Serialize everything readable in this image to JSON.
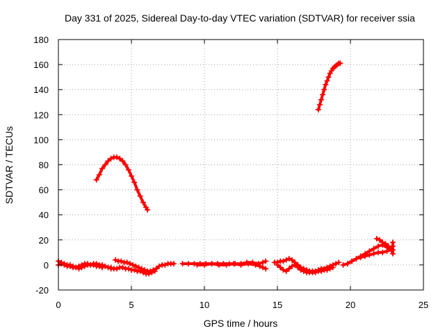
{
  "chart_data": {
    "type": "scatter",
    "title": "Day 331 of 2025, Sidereal Day-to-day VTEC variation (SDTVAR) for receiver ssia",
    "xlabel": "GPS time / hours",
    "ylabel": "SDTVAR / TECUs",
    "xlim": [
      0,
      25
    ],
    "ylim": [
      -20,
      180
    ],
    "xticks": [
      0,
      5,
      10,
      15,
      20,
      25
    ],
    "yticks": [
      -20,
      0,
      20,
      40,
      60,
      80,
      100,
      120,
      140,
      160,
      180
    ],
    "grid": true,
    "marker": "plus",
    "color": "#ff0000",
    "series": [
      {
        "name": "arc-1",
        "x": [
          2.6,
          2.8,
          3.0,
          3.2,
          3.4,
          3.6,
          3.8,
          4.0,
          4.2,
          4.4,
          4.6,
          4.8,
          5.0,
          5.2,
          5.4,
          5.6,
          5.8,
          6.0,
          6.1
        ],
        "y": [
          68,
          72,
          77,
          80,
          83,
          85,
          86,
          86,
          85,
          83,
          80,
          76,
          71,
          66,
          60,
          55,
          50,
          46,
          44
        ]
      },
      {
        "name": "arc-2",
        "x": [
          17.8,
          17.9,
          18.0,
          18.1,
          18.2,
          18.3,
          18.4,
          18.5,
          18.6,
          18.7,
          18.8,
          18.9,
          19.0,
          19.1,
          19.2,
          19.3
        ],
        "y": [
          124,
          128,
          132,
          136,
          140,
          144,
          147,
          150,
          153,
          155,
          157,
          158,
          159,
          160,
          161,
          161
        ]
      },
      {
        "name": "arc-3",
        "x": [
          0.0,
          0.2,
          0.4,
          0.6,
          0.8,
          1.0,
          1.2,
          1.4,
          1.6,
          1.8,
          2.0,
          2.2,
          2.4,
          2.6,
          2.8,
          3.0,
          3.2,
          3.4,
          3.6
        ],
        "y": [
          3,
          2,
          1,
          0,
          0,
          -1,
          -2,
          -3,
          -2,
          -1,
          0,
          0,
          1,
          1,
          0,
          0,
          -1,
          -2,
          -2
        ]
      },
      {
        "name": "arc-4",
        "x": [
          0.0,
          0.2,
          0.4,
          0.6,
          0.8,
          1.0,
          1.2,
          1.4,
          1.6,
          1.8,
          2.0,
          2.2,
          2.4,
          2.6,
          2.8,
          3.0
        ],
        "y": [
          0,
          1,
          0,
          -1,
          -1,
          -2,
          -2,
          -1,
          0,
          1,
          1,
          0,
          0,
          -1,
          -1,
          -2
        ]
      },
      {
        "name": "arc-5",
        "x": [
          3.9,
          4.1,
          4.3,
          4.5,
          4.7,
          4.9,
          5.1,
          5.3,
          5.5,
          5.7,
          5.9,
          6.1,
          6.3,
          6.5,
          6.7,
          6.9,
          7.1,
          7.3,
          7.5,
          7.7,
          7.9
        ],
        "y": [
          4,
          3,
          3,
          2,
          2,
          1,
          0,
          -1,
          -2,
          -3,
          -4,
          -5,
          -5,
          -4,
          -3,
          -1,
          0,
          0,
          1,
          1,
          1
        ]
      },
      {
        "name": "arc-6",
        "x": [
          3.6,
          3.8,
          4.0,
          4.2,
          4.4,
          4.6,
          4.8,
          5.0,
          5.2,
          5.4,
          5.6,
          5.8,
          6.0,
          6.2,
          6.4,
          6.6
        ],
        "y": [
          -3,
          -3,
          -3,
          -2,
          -2,
          -3,
          -3,
          -4,
          -4,
          -5,
          -5,
          -6,
          -7,
          -7,
          -6,
          -5
        ]
      },
      {
        "name": "arc-7",
        "x": [
          8.5,
          8.9,
          9.3,
          9.7,
          10.1,
          10.5,
          10.9,
          11.3,
          11.7,
          12.1,
          12.5,
          12.9,
          13.3,
          13.7,
          14.0,
          14.2
        ],
        "y": [
          1,
          1,
          1,
          1,
          1,
          1,
          1,
          1,
          1,
          1,
          1,
          2,
          2,
          1,
          2,
          3
        ]
      },
      {
        "name": "arc-8",
        "x": [
          9.5,
          10.0,
          10.5,
          11.0,
          11.5,
          12.0,
          12.5,
          13.0,
          13.5,
          13.8,
          14.0,
          14.2
        ],
        "y": [
          0,
          0,
          1,
          0,
          0,
          1,
          0,
          1,
          0,
          -1,
          -2,
          -3
        ]
      },
      {
        "name": "arc-9",
        "x": [
          14.8,
          15.0,
          15.2,
          15.4,
          15.6,
          15.8,
          16.0,
          16.2,
          16.4,
          16.6,
          16.8,
          17.0,
          17.2,
          17.4,
          17.6,
          17.8,
          18.0,
          18.2,
          18.4,
          18.6,
          18.8,
          19.0,
          19.2
        ],
        "y": [
          2,
          2,
          3,
          3,
          4,
          5,
          4,
          2,
          0,
          -2,
          -3,
          -4,
          -5,
          -5,
          -5,
          -4,
          -3,
          -3,
          -2,
          -1,
          0,
          1,
          2
        ]
      },
      {
        "name": "arc-10",
        "x": [
          15.0,
          15.2,
          15.4,
          15.6,
          15.8,
          16.0,
          16.2,
          16.4,
          16.6,
          16.8,
          17.0,
          17.2,
          17.4,
          17.6,
          17.8,
          18.0,
          18.2,
          18.4,
          18.6,
          18.8
        ],
        "y": [
          0,
          -2,
          -4,
          -5,
          -3,
          -1,
          0,
          -2,
          -4,
          -5,
          -6,
          -6,
          -6,
          -6,
          -5,
          -5,
          -4,
          -4,
          -3,
          -2
        ]
      },
      {
        "name": "arc-11",
        "x": [
          19.5,
          19.8,
          20.1,
          20.4,
          20.7,
          21.0,
          21.3,
          21.6,
          21.9,
          22.2,
          22.5,
          22.8
        ],
        "y": [
          0,
          1,
          3,
          5,
          6,
          7,
          8,
          9,
          10,
          10,
          11,
          12
        ]
      },
      {
        "name": "arc-12",
        "x": [
          19.8,
          20.1,
          20.4,
          20.7,
          21.0,
          21.3,
          21.6,
          21.9,
          22.2,
          22.5,
          22.8
        ],
        "y": [
          1,
          3,
          5,
          7,
          9,
          11,
          13,
          15,
          16,
          14,
          12
        ]
      },
      {
        "name": "arc-13",
        "x": [
          21.8,
          22.0,
          22.2,
          22.4,
          22.6,
          22.8,
          22.9
        ],
        "y": [
          21,
          20,
          18,
          17,
          15,
          13,
          12
        ]
      },
      {
        "name": "arc-14",
        "x": [
          22.9,
          22.9,
          22.9,
          22.9
        ],
        "y": [
          18,
          15,
          12,
          9
        ]
      }
    ]
  }
}
